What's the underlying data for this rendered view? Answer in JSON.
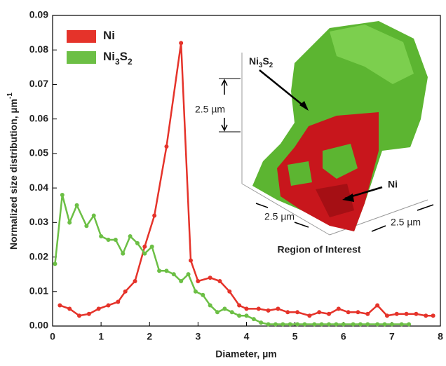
{
  "chart_data": {
    "type": "line",
    "x_label": "Diameter, µm",
    "y_label": "Normalized size distribution, µm",
    "y_label_exponent": "-1",
    "xlim": [
      0,
      8
    ],
    "xticks": [
      0,
      1,
      2,
      3,
      4,
      5,
      6,
      7,
      8
    ],
    "ylim": [
      0,
      0.09
    ],
    "yticks": [
      {
        "value": 0,
        "label": "0.00"
      },
      0.01,
      0.02,
      0.03,
      0.04,
      0.05,
      0.06,
      0.07,
      0.08,
      0.09
    ],
    "legend": "upper left",
    "series": [
      {
        "name": "Ni",
        "color": "#e5332a",
        "x": [
          0.15,
          0.35,
          0.55,
          0.75,
          0.95,
          1.15,
          1.35,
          1.5,
          1.7,
          1.9,
          2.1,
          2.35,
          2.65,
          2.85,
          3.0,
          3.25,
          3.45,
          3.65,
          3.85,
          4.0,
          4.25,
          4.45,
          4.65,
          4.85,
          5.05,
          5.3,
          5.5,
          5.7,
          5.9,
          6.1,
          6.3,
          6.5,
          6.7,
          6.9,
          7.1,
          7.3,
          7.5,
          7.7,
          7.85
        ],
        "values": [
          0.006,
          0.005,
          0.003,
          0.0035,
          0.005,
          0.006,
          0.007,
          0.01,
          0.013,
          0.023,
          0.032,
          0.052,
          0.082,
          0.019,
          0.013,
          0.014,
          0.013,
          0.01,
          0.006,
          0.005,
          0.005,
          0.0045,
          0.005,
          0.004,
          0.004,
          0.003,
          0.004,
          0.0035,
          0.005,
          0.004,
          0.004,
          0.0035,
          0.006,
          0.003,
          0.0035,
          0.0035,
          0.0035,
          0.003,
          0.003
        ]
      },
      {
        "name": "Ni3S2",
        "color": "#6cbf45",
        "x": [
          0.05,
          0.2,
          0.35,
          0.5,
          0.7,
          0.85,
          1.0,
          1.15,
          1.3,
          1.45,
          1.6,
          1.75,
          1.9,
          2.05,
          2.2,
          2.35,
          2.5,
          2.65,
          2.8,
          2.95,
          3.1,
          3.25,
          3.4,
          3.55,
          3.7,
          3.85,
          4.0,
          4.15,
          4.3,
          4.45,
          4.6,
          4.75,
          4.9,
          5.05,
          5.2,
          5.4,
          5.55,
          5.7,
          5.85,
          6.0,
          6.2,
          6.35,
          6.5,
          6.7,
          6.85,
          7.0,
          7.2,
          7.35
        ],
        "values": [
          0.018,
          0.038,
          0.03,
          0.035,
          0.029,
          0.032,
          0.026,
          0.025,
          0.025,
          0.021,
          0.026,
          0.024,
          0.021,
          0.023,
          0.016,
          0.016,
          0.015,
          0.013,
          0.015,
          0.01,
          0.009,
          0.006,
          0.004,
          0.005,
          0.004,
          0.003,
          0.003,
          0.002,
          0.001,
          0.0005,
          0.0005,
          0.0005,
          0.0005,
          0.0005,
          0.0005,
          0.0005,
          0.0005,
          0.0005,
          0.0005,
          0.0005,
          0.0005,
          0.0005,
          0.0005,
          0.0005,
          0.0005,
          0.0005,
          0.0005,
          0.0005
        ]
      }
    ],
    "inset": {
      "label_ni3s2": "Ni3S2",
      "scale_vertical": "2.5 µm",
      "label_ni": "Ni",
      "scale_left": "2.5 µm",
      "scale_right": "2.5 µm",
      "caption": "Region of Interest"
    }
  }
}
